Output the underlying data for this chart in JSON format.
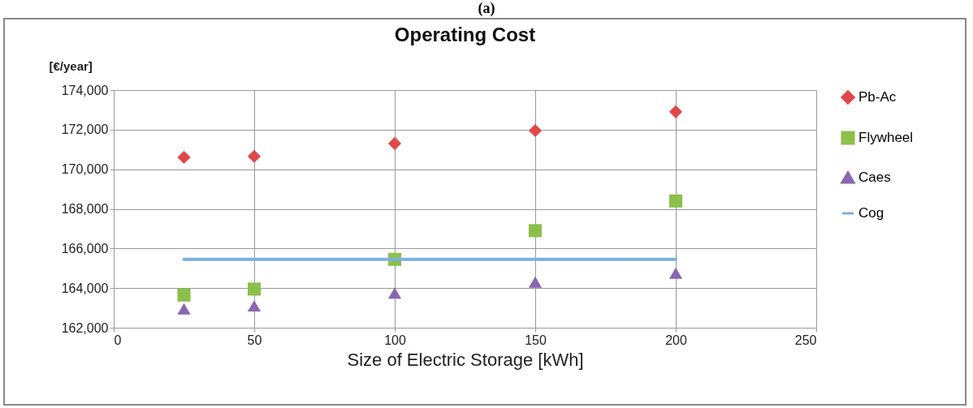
{
  "chart_data": {
    "type": "scatter",
    "title": "Operating Cost",
    "xlabel": "Size of Electric Storage [kWh]",
    "ylabel": "[€/year]",
    "annotations": [
      "(a)"
    ],
    "x": [
      25,
      50,
      100,
      150,
      200
    ],
    "series": [
      {
        "name": "Pb-Ac",
        "color": "#e04848",
        "marker": "diamond",
        "values": [
          170600,
          170650,
          171300,
          171950,
          172900
        ]
      },
      {
        "name": "Flywheel",
        "color": "#8cc04a",
        "marker": "square",
        "values": [
          163650,
          163950,
          165450,
          166900,
          168400
        ]
      },
      {
        "name": "Caes",
        "color": "#8866b0",
        "marker": "triangle",
        "values": [
          162950,
          163100,
          163750,
          164300,
          164750
        ]
      },
      {
        "name": "Cog",
        "color": "#7cb0dc",
        "type": "line",
        "x": [
          25,
          200
        ],
        "values": [
          165450,
          165450
        ]
      }
    ],
    "xlim": [
      0,
      250
    ],
    "xticks": [
      0,
      50,
      100,
      150,
      200,
      250
    ],
    "ylim": [
      162000,
      174000
    ],
    "yticks": [
      {
        "value": 162000,
        "label": "162,000"
      },
      {
        "value": 164000,
        "label": "164,000"
      },
      {
        "value": 166000,
        "label": "166,000"
      },
      {
        "value": 168000,
        "label": "168,000"
      },
      {
        "value": 170000,
        "label": "170,000"
      },
      {
        "value": 172000,
        "label": "172,000"
      },
      {
        "value": 174000,
        "label": "174,000"
      }
    ],
    "grid": true,
    "legend": "right"
  }
}
